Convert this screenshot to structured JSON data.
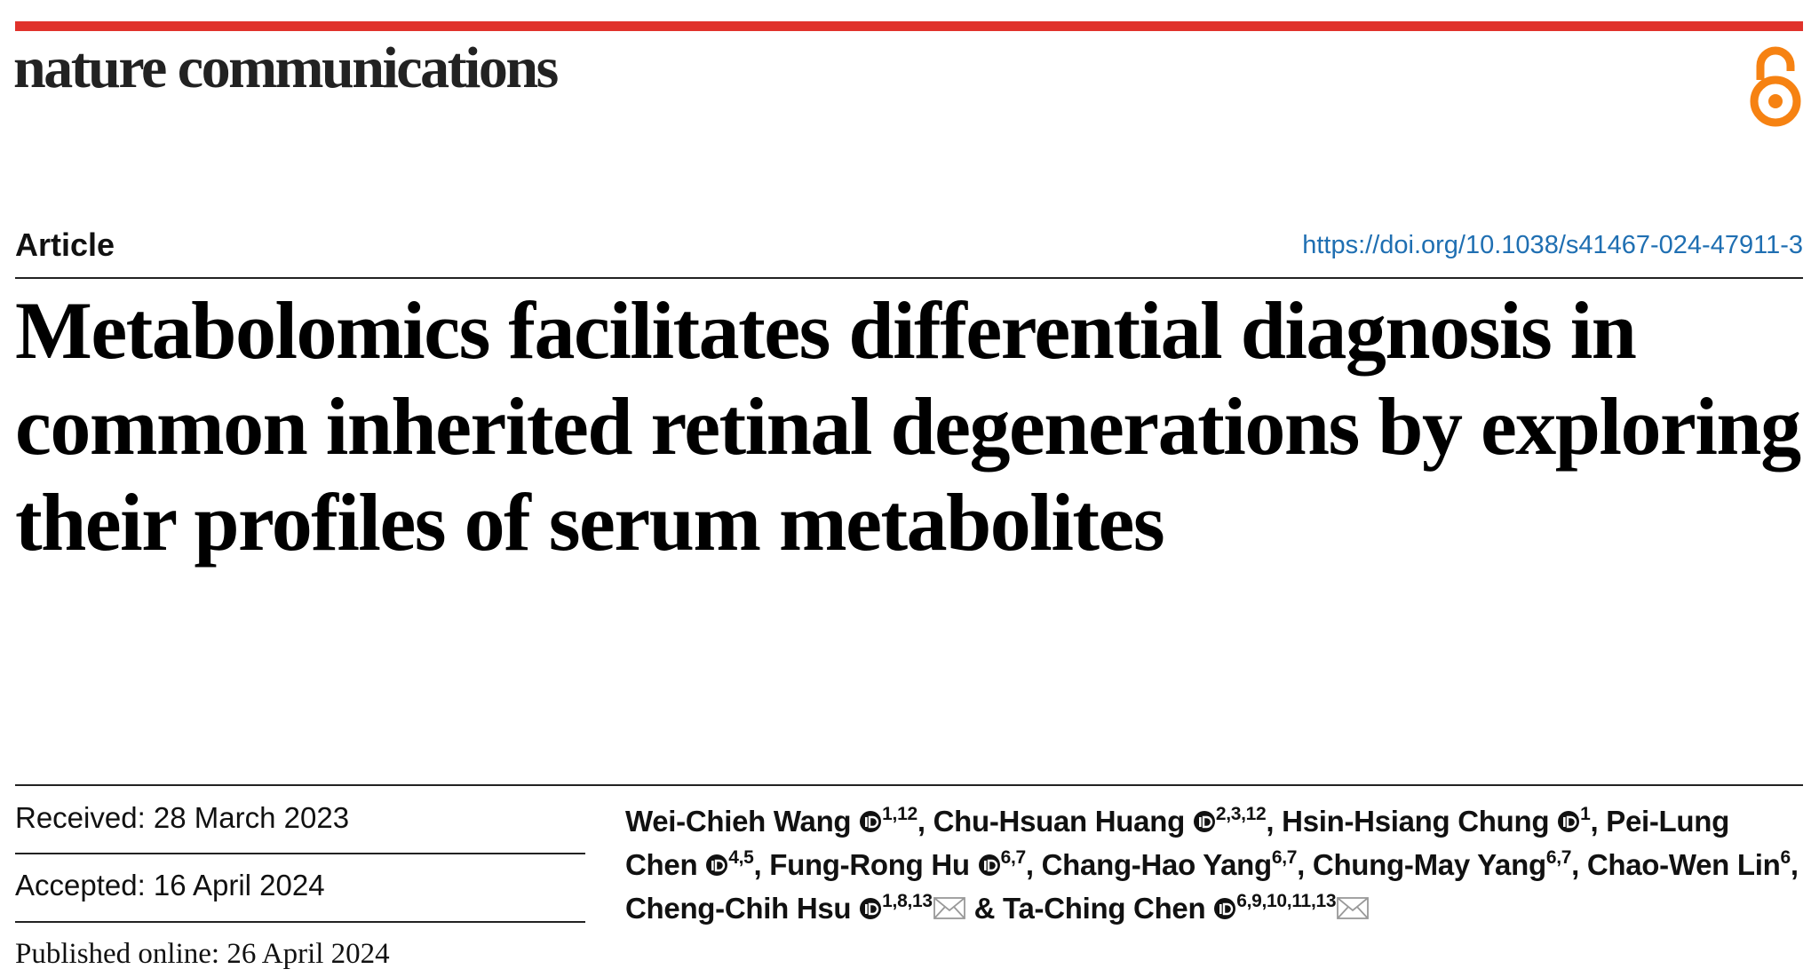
{
  "header": {
    "journal": "nature communications",
    "article_type": "Article",
    "doi": "https://doi.org/10.1038/s41467-024-47911-3"
  },
  "title": "Metabolomics facilitates differential diagnosis in common inherited retinal degenerations by exploring their profiles of serum metabolites",
  "dates": {
    "received": "Received: 28 March 2023",
    "accepted": "Accepted: 16 April 2024",
    "published": "Published online: 26 April 2024"
  },
  "separator": ",",
  "conjunction": "&",
  "authors": [
    {
      "name": "Wei-Chieh Wang",
      "orcid": true,
      "affiliations": "1,12",
      "corresponding": false
    },
    {
      "name": "Chu-Hsuan Huang",
      "orcid": true,
      "affiliations": "2,3,12",
      "corresponding": false
    },
    {
      "name": "Hsin-Hsiang Chung",
      "orcid": true,
      "affiliations": "1",
      "corresponding": false
    },
    {
      "name": "Pei-Lung Chen",
      "orcid": true,
      "affiliations": "4,5",
      "corresponding": false
    },
    {
      "name": "Fung-Rong Hu",
      "orcid": true,
      "affiliations": "6,7",
      "corresponding": false
    },
    {
      "name": "Chang-Hao Yang",
      "orcid": false,
      "affiliations": "6,7",
      "corresponding": false
    },
    {
      "name": "Chung-May Yang",
      "orcid": false,
      "affiliations": "6,7",
      "corresponding": false
    },
    {
      "name": "Chao-Wen Lin",
      "orcid": false,
      "affiliations": "6",
      "corresponding": false
    },
    {
      "name": "Cheng-Chih Hsu",
      "orcid": true,
      "affiliations": "1,8,13",
      "corresponding": true
    },
    {
      "name": "Ta-Ching Chen",
      "orcid": true,
      "affiliations": "6,9,10,11,13",
      "corresponding": true
    }
  ]
}
